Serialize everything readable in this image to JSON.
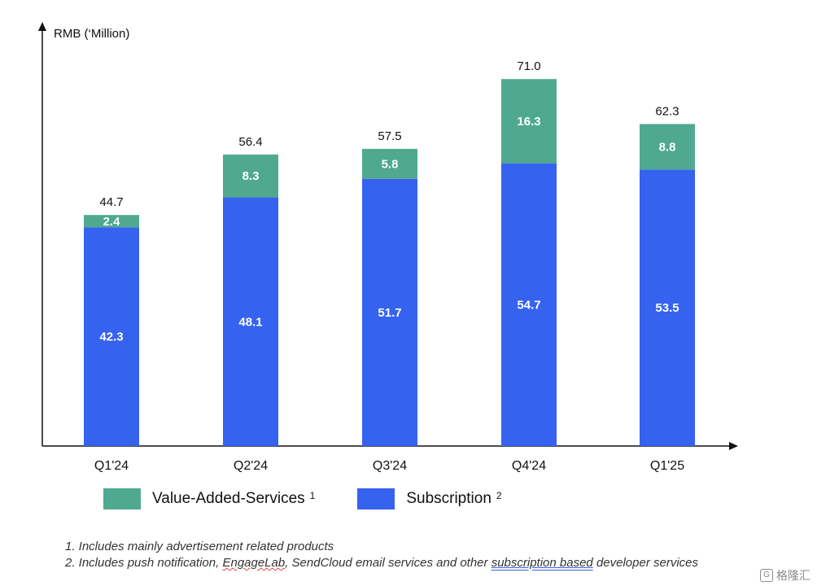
{
  "chart_data": {
    "type": "bar",
    "stacked": true,
    "ylabel": "RMB (‘Million)",
    "ylim": [
      0,
      80
    ],
    "grid": false,
    "legend_position": "bottom",
    "categories": [
      "Q1'24",
      "Q2'24",
      "Q3'24",
      "Q4'24",
      "Q1'25"
    ],
    "totals": [
      "44.7",
      "56.4",
      "57.5",
      "71.0",
      "62.3"
    ],
    "series": [
      {
        "name": "Subscription",
        "footnote": "2",
        "color": "#3662f0",
        "values": [
          42.3,
          48.1,
          51.7,
          54.7,
          53.5
        ],
        "labels": [
          "42.3",
          "48.1",
          "51.7",
          "54.7",
          "53.5"
        ]
      },
      {
        "name": "Value-Added-Services",
        "footnote": "1",
        "color": "#4fa98e",
        "values": [
          2.4,
          8.3,
          5.8,
          16.3,
          8.8
        ],
        "labels": [
          "2.4",
          "8.3",
          "5.8",
          "16.3",
          "8.8"
        ]
      }
    ]
  },
  "footnotes": {
    "note1": "1. Includes mainly advertisement related products",
    "note2_prefix": "2. Includes push notification, ",
    "note2_engagelab": "EngageLab",
    "note2_mid": ", SendCloud email services and other ",
    "note2_subscription": "subscription based",
    "note2_suffix": " developer services"
  },
  "watermark": {
    "mark": "G",
    "text": "格隆汇"
  }
}
